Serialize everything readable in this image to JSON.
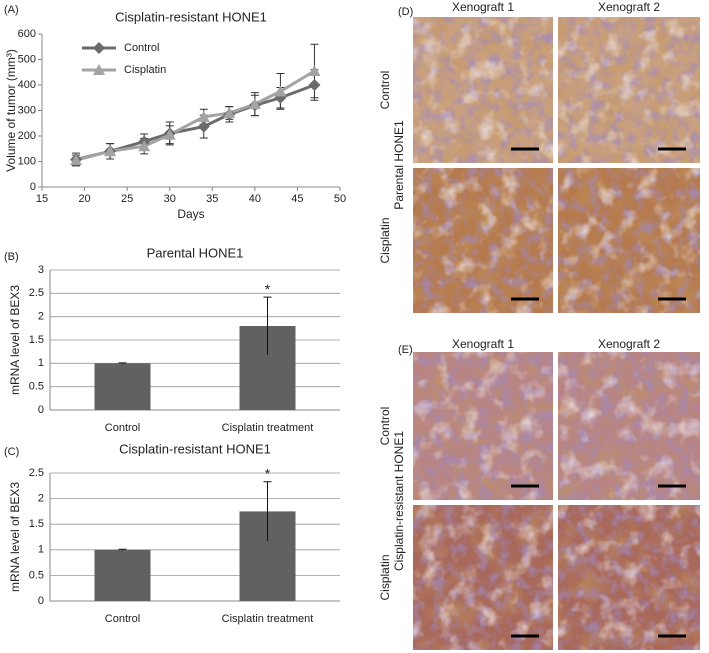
{
  "chart_data": [
    {
      "type": "line",
      "title": "Cisplatin-resistant HONE1",
      "x_label": "Days",
      "y_label": "Volume of tumor (mm³)",
      "x": [
        19,
        23,
        27,
        30,
        34,
        37,
        40,
        43,
        47
      ],
      "series": [
        {
          "name": "Control",
          "color": "#6b6b6b",
          "marker": "diamond",
          "values": [
            108,
            140,
            178,
            210,
            237,
            285,
            320,
            350,
            400
          ],
          "errors": [
            25,
            30,
            30,
            45,
            45,
            30,
            40,
            40,
            60
          ]
        },
        {
          "name": "Cisplatin",
          "color": "#a3a3a3",
          "marker": "triangle",
          "values": [
            105,
            140,
            160,
            205,
            275,
            290,
            325,
            375,
            455
          ],
          "errors": [
            20,
            30,
            30,
            35,
            30,
            25,
            45,
            70,
            105
          ]
        }
      ],
      "xlim": [
        15,
        50
      ],
      "xticks": [
        15,
        20,
        25,
        30,
        35,
        40,
        45,
        50
      ],
      "ylim": [
        0,
        600
      ],
      "yticks": [
        0,
        100,
        200,
        300,
        400,
        500,
        600
      ],
      "grid": false,
      "legend": "upper-left"
    },
    {
      "type": "bar",
      "title": "Parental HONE1",
      "y_label": "mRNA level of BEX3",
      "categories": [
        "Control",
        "Cisplatin treatment"
      ],
      "values": [
        1,
        1.8
      ],
      "errors": [
        0.01,
        0.62
      ],
      "color": "#616161",
      "ylim": [
        0,
        3
      ],
      "yticks": [
        0,
        0.5,
        1,
        1.5,
        2,
        2.5,
        3
      ],
      "grid": true,
      "annotation": "*"
    },
    {
      "type": "bar",
      "title": "Cisplatin-resistant HONE1",
      "y_label": "mRNA level of BEX3",
      "categories": [
        "Control",
        "Cisplatin treatment"
      ],
      "values": [
        1,
        1.75
      ],
      "errors": [
        0.01,
        0.58
      ],
      "color": "#616161",
      "ylim": [
        0,
        2.5
      ],
      "yticks": [
        0,
        0.5,
        1,
        1.5,
        2,
        2.5
      ],
      "grid": true,
      "annotation": "*"
    }
  ],
  "panels": [
    "(A)",
    "(B)",
    "(C)",
    "(D)",
    "(E)"
  ],
  "histology": [
    {
      "title": "Parental HONE1",
      "columns": [
        "Xenograft 1",
        "Xenograft 2"
      ],
      "rows": [
        "Control",
        "Cisplatin"
      ]
    },
    {
      "title": "Cisplatin-resistant HONE1",
      "columns": [
        "Xenograft 1",
        "Xenograft 2"
      ],
      "rows": [
        "Control",
        "Cisplatin"
      ]
    }
  ]
}
